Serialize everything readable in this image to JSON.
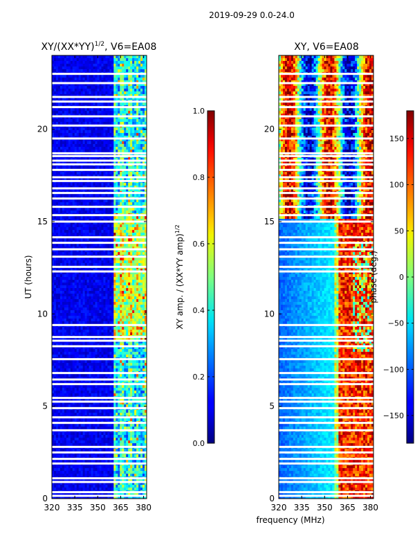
{
  "figure_title": "2019-09-29 0.0-24.0",
  "shared_xlabel": "frequency (MHz)",
  "chart_data": [
    {
      "type": "heatmap",
      "title_base": "XY/(XX*YY)",
      "title_exp": "1/2",
      "title_suffix": ", V6=EA08",
      "xlabel": "",
      "ylabel": "UT (hours)",
      "xlim": [
        320,
        382
      ],
      "ylim": [
        0,
        24
      ],
      "xticks": [
        320,
        335,
        350,
        365,
        380
      ],
      "yticks": [
        0,
        5,
        10,
        15,
        20
      ],
      "colorbar": {
        "label_base": "XY amp. / (XX*YY amp)",
        "label_exp": "1/2",
        "range": [
          0.0,
          1.0
        ],
        "ticks": [
          "0.0",
          "0.2",
          "0.4",
          "0.6",
          "0.8",
          "1.0"
        ],
        "colormap": "jet"
      },
      "blank_hours": [
        0.15,
        0.35,
        0.9,
        1.1,
        1.9,
        2.15,
        2.5,
        2.8,
        3.7,
        4.1,
        4.4,
        4.9,
        5.25,
        5.45,
        6.2,
        6.45,
        6.8,
        7.55,
        8.25,
        8.55,
        8.75,
        9.4,
        12.3,
        12.55,
        13.1,
        13.5,
        13.85,
        14.15,
        15.0,
        15.35,
        15.8,
        16.25,
        16.55,
        16.8,
        17.2,
        17.4,
        17.8,
        18.1,
        18.3,
        18.55,
        18.7,
        19.5,
        20.2,
        20.7,
        21.2,
        21.5,
        21.75,
        22.5,
        23.0
      ]
    },
    {
      "type": "heatmap",
      "title": "XY, V6=EA08",
      "xlabel": "frequency (MHz)",
      "ylabel": "",
      "xlim": [
        320,
        382
      ],
      "ylim": [
        0,
        24
      ],
      "xticks": [
        320,
        335,
        350,
        365,
        380
      ],
      "yticks": [
        0,
        5,
        10,
        15,
        20
      ],
      "colorbar": {
        "label": "phase (deg.)",
        "range": [
          -180,
          180
        ],
        "ticks": [
          "−150",
          "−100",
          "−50",
          "0",
          "50",
          "100",
          "150"
        ],
        "tick_values": [
          -150,
          -100,
          -50,
          0,
          50,
          100,
          150
        ],
        "colormap": "jet"
      },
      "blank_hours": [
        0.15,
        0.35,
        0.9,
        1.1,
        1.9,
        2.15,
        2.5,
        2.8,
        3.7,
        4.1,
        4.4,
        4.9,
        5.25,
        5.45,
        6.2,
        6.45,
        6.8,
        7.55,
        8.25,
        8.55,
        8.75,
        9.4,
        12.3,
        12.55,
        13.1,
        13.5,
        13.85,
        14.15,
        15.0,
        15.35,
        15.8,
        16.25,
        16.55,
        16.8,
        17.2,
        17.4,
        17.8,
        18.1,
        18.3,
        18.55,
        18.7,
        19.5,
        20.2,
        20.7,
        21.2,
        21.5,
        21.75,
        22.5,
        23.0
      ]
    }
  ]
}
